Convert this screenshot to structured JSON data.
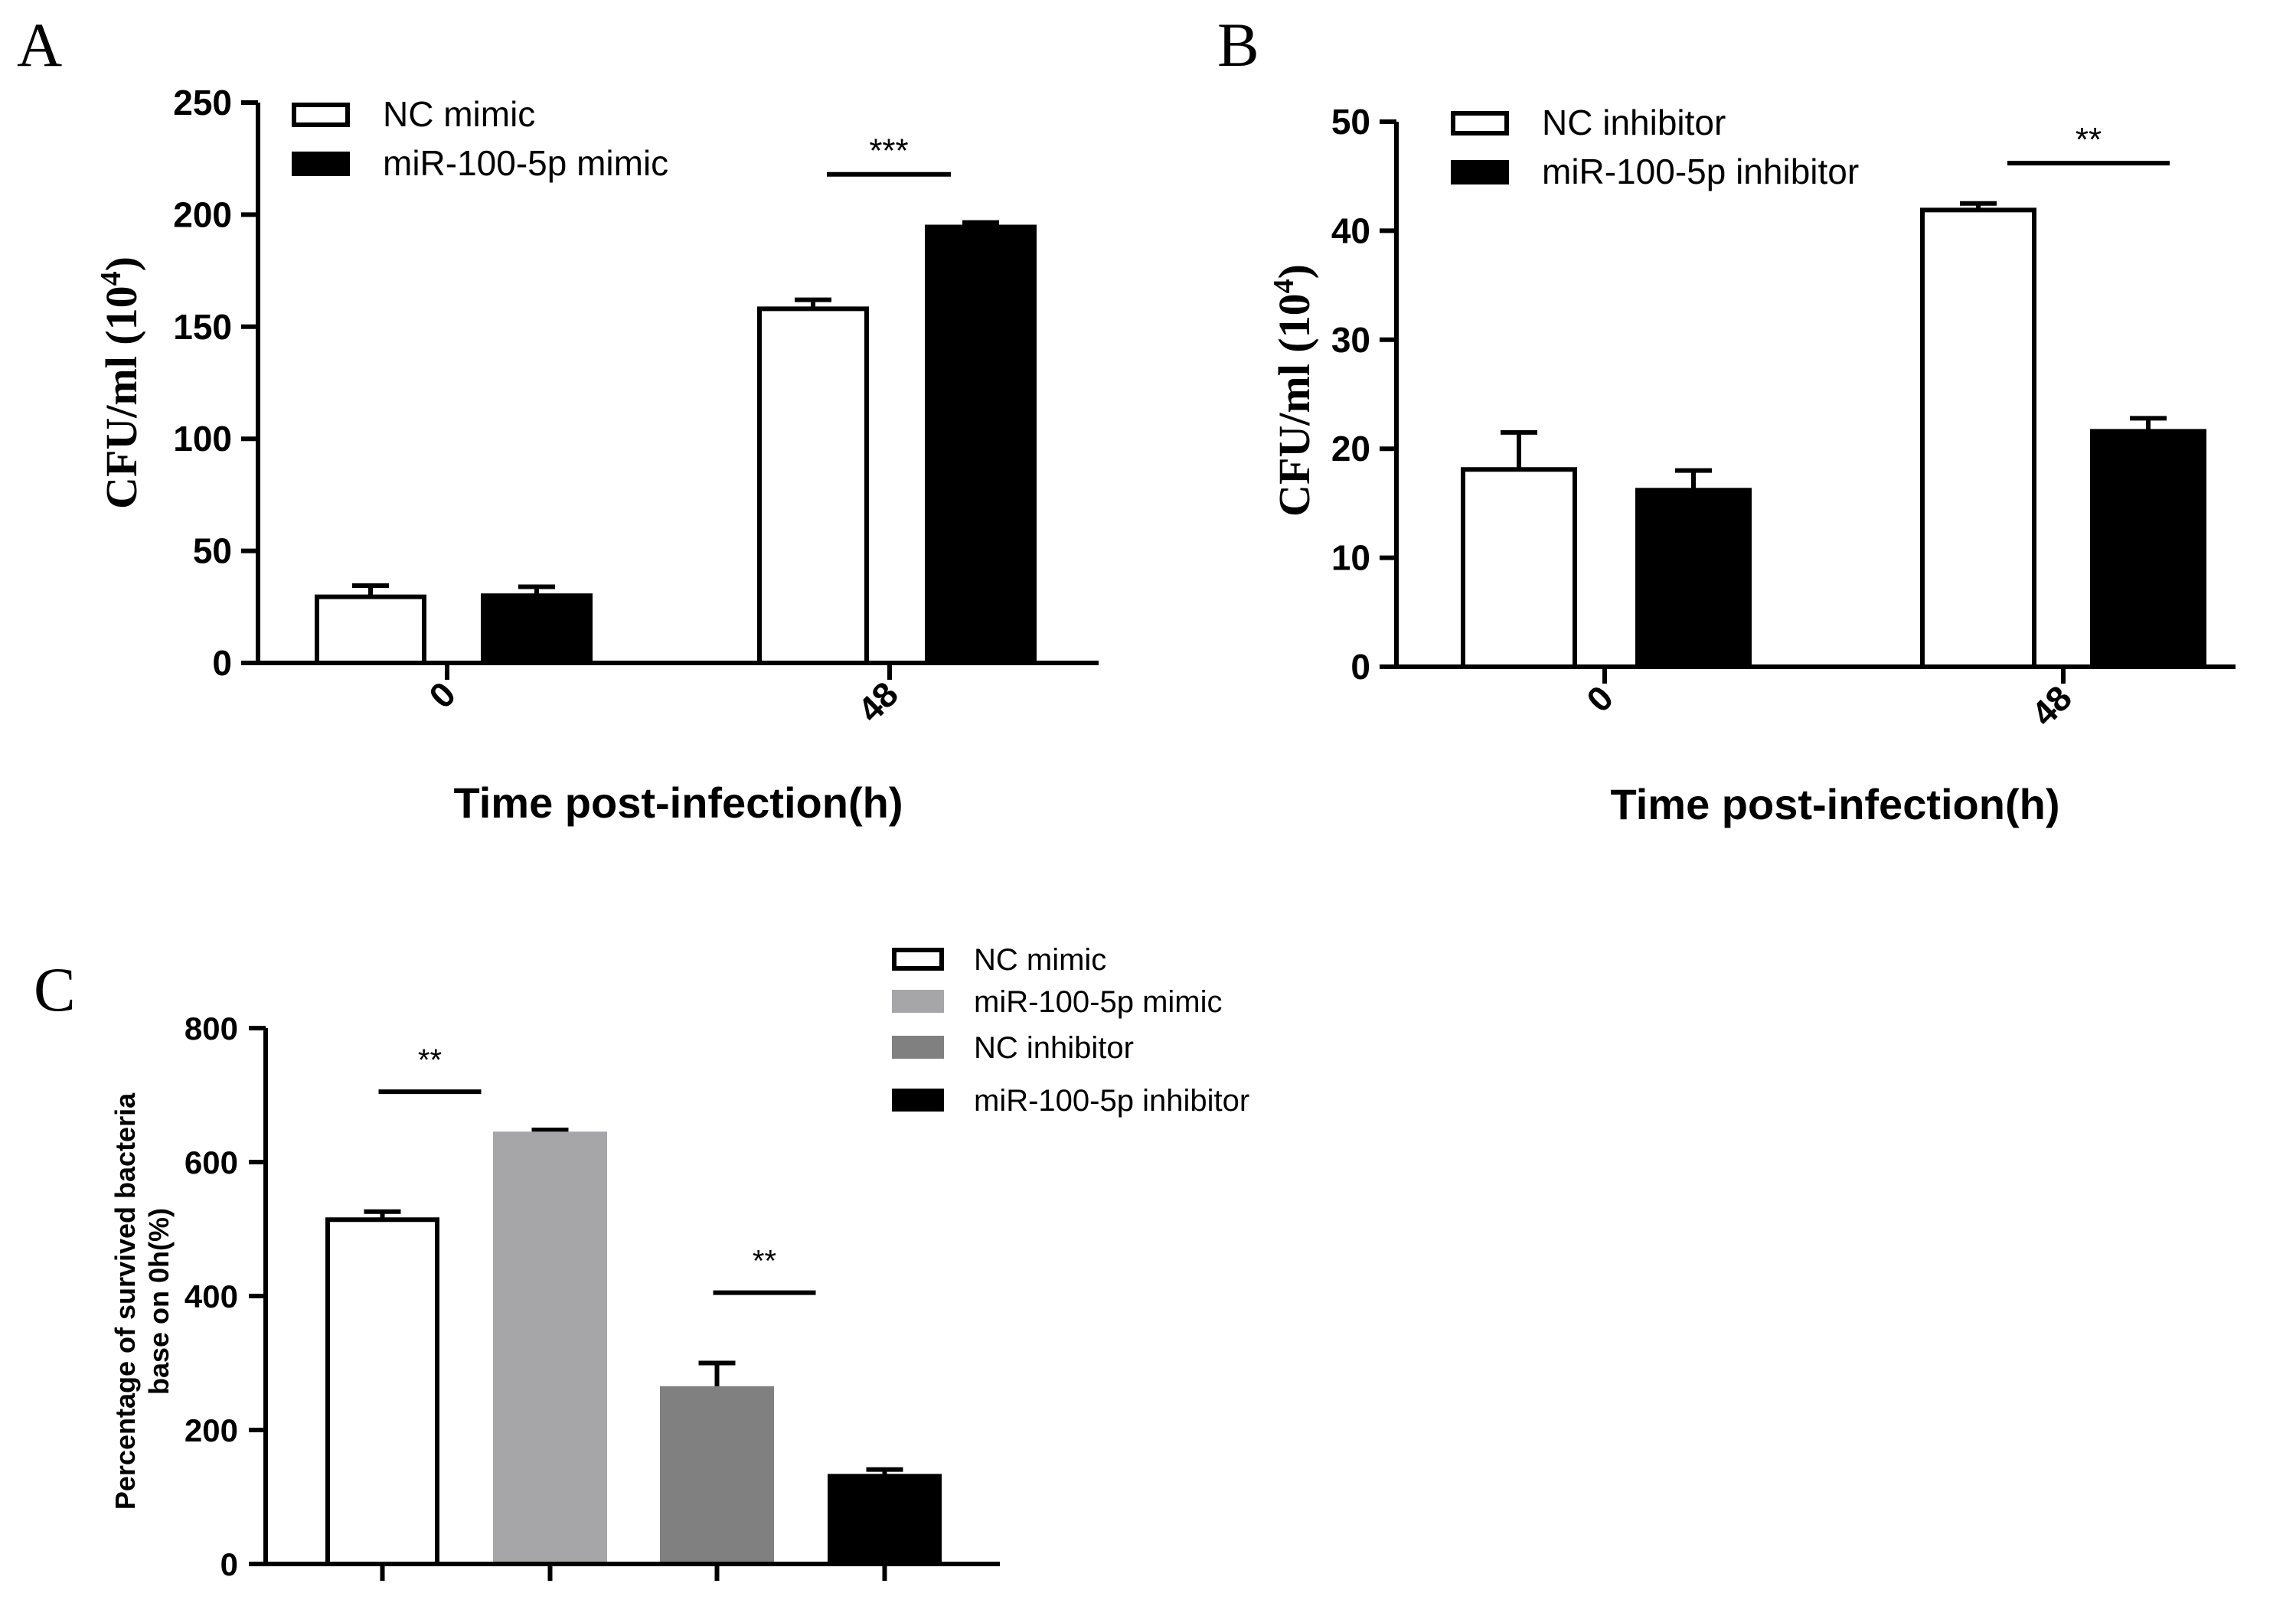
{
  "colors": {
    "ink": "#000000",
    "white": "#ffffff",
    "light_gray": "#a6a6a9",
    "dark_gray": "#808080",
    "black": "#000000"
  },
  "chart_data": [
    {
      "panel": "A",
      "type": "bar",
      "xlabel": "Time post-infection(h)",
      "ylabel": "CFU/ml (10",
      "ylabel_sup": "4",
      "ylabel_close": ")",
      "categories": [
        "0",
        "48"
      ],
      "ylim": [
        0,
        250
      ],
      "yticks": [
        "0",
        "50",
        "100",
        "150",
        "200",
        "250"
      ],
      "series": [
        {
          "name": "NC mimic",
          "fill": "white",
          "values": [
            29.5,
            158
          ],
          "errors": [
            5,
            4
          ]
        },
        {
          "name": "miR-100-5p mimic",
          "fill": "black",
          "values": [
            30,
            194.5
          ],
          "errors": [
            4,
            2
          ]
        }
      ],
      "annotations": [
        {
          "category": "48",
          "label": "***",
          "y": 218
        }
      ],
      "legend": "top-left"
    },
    {
      "panel": "B",
      "type": "bar",
      "xlabel": "Time post-infection(h)",
      "ylabel": "CFU/ml (10",
      "ylabel_sup": "4",
      "ylabel_close": ")",
      "categories": [
        "0",
        "48"
      ],
      "ylim": [
        0,
        50
      ],
      "yticks": [
        "0",
        "10",
        "20",
        "30",
        "40",
        "50"
      ],
      "series": [
        {
          "name": "NC inhibitor",
          "fill": "white",
          "values": [
            18.1,
            41.9
          ],
          "errors": [
            3.4,
            0.6
          ]
        },
        {
          "name": "miR-100-5p inhibitor",
          "fill": "black",
          "values": [
            16.2,
            21.6
          ],
          "errors": [
            1.8,
            1.2
          ]
        }
      ],
      "annotations": [
        {
          "category": "48",
          "label": "**",
          "y": 46.2
        }
      ],
      "legend": "top-left"
    },
    {
      "panel": "C",
      "type": "bar",
      "ylabel_lines": [
        "Percentage of survived bacteria",
        "base on 0h(%)"
      ],
      "ylim": [
        0,
        800
      ],
      "yticks": [
        "0",
        "200",
        "400",
        "600",
        "800"
      ],
      "series": [
        {
          "name": "NC mimic",
          "fill": "white",
          "value": 514,
          "error": 12
        },
        {
          "name": "miR-100-5p mimic",
          "fill": "light_gray",
          "value": 642,
          "error": 6
        },
        {
          "name": "NC inhibitor",
          "fill": "dark_gray",
          "value": 262,
          "error": 38
        },
        {
          "name": "miR-100-5p inhibitor",
          "fill": "black",
          "value": 131,
          "error": 10
        }
      ],
      "annotations": [
        {
          "from": 0,
          "to": 1,
          "label": "**",
          "y": 705
        },
        {
          "from": 2,
          "to": 3,
          "label": "**",
          "y": 405
        }
      ],
      "legend": "top-right"
    }
  ]
}
